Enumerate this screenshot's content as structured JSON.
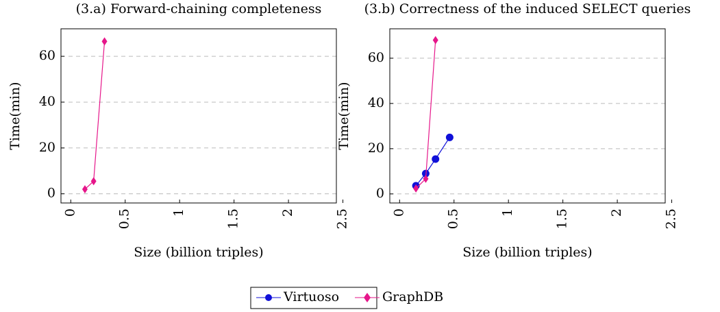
{
  "chart_data": [
    {
      "type": "line",
      "title": "(3.a) Forward-chaining completeness",
      "x_label": "Size (billion triples)",
      "y_label": "Time(min)",
      "xlim": [
        -0.09,
        2.44
      ],
      "ylim": [
        -4,
        72
      ],
      "xticks": [
        0,
        0.5,
        1,
        1.5,
        2,
        2.5
      ],
      "yticks": [
        0,
        20,
        40,
        60
      ],
      "grid": "y",
      "series": [
        {
          "name": "GraphDB",
          "color": "#e6168a",
          "marker": "diamond",
          "x": [
            0.13,
            0.21,
            0.31
          ],
          "values": [
            2,
            5.5,
            66.5
          ]
        }
      ]
    },
    {
      "type": "line",
      "title": "(3.b) Correctness of the induced SELECT queries",
      "x_label": "Size (billion triples)",
      "y_label": "Time(min)",
      "xlim": [
        -0.09,
        2.44
      ],
      "ylim": [
        -4,
        73
      ],
      "xticks": [
        0,
        0.5,
        1,
        1.5,
        2,
        2.5
      ],
      "yticks": [
        0,
        20,
        40,
        60
      ],
      "grid": "y",
      "series": [
        {
          "name": "Virtuoso",
          "color": "#1010d8",
          "marker": "circle",
          "x": [
            0.15,
            0.24,
            0.33,
            0.46
          ],
          "values": [
            3.6,
            9,
            15.4,
            25
          ]
        },
        {
          "name": "GraphDB",
          "color": "#e6168a",
          "marker": "diamond",
          "x": [
            0.15,
            0.24,
            0.33
          ],
          "values": [
            2.4,
            6.7,
            68
          ]
        }
      ]
    }
  ]
}
